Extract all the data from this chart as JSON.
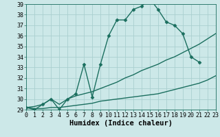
{
  "xlabel": "Humidex (Indice chaleur)",
  "bg_color": "#cce8e8",
  "grid_color": "#aacfcf",
  "line_color": "#1a6e5e",
  "xmin": 0,
  "xmax": 23,
  "ymin": 29,
  "ymax": 39,
  "series": [
    {
      "x": [
        0,
        1,
        2,
        3,
        4,
        5,
        6,
        7,
        8,
        9,
        10,
        11,
        12,
        13,
        14,
        15,
        16,
        17,
        18,
        19,
        20,
        21
      ],
      "y": [
        29.2,
        29.0,
        29.5,
        30.0,
        29.0,
        30.0,
        30.5,
        33.3,
        30.2,
        33.3,
        36.0,
        37.5,
        37.5,
        38.5,
        38.8,
        39.5,
        38.5,
        37.3,
        37.0,
        36.2,
        34.0,
        33.5
      ],
      "marker": "D",
      "markersize": 2.5,
      "linewidth": 1.0
    },
    {
      "x": [
        0,
        1,
        2,
        3,
        4,
        5,
        6,
        7,
        8,
        9,
        10,
        11,
        12,
        13,
        14,
        15,
        16,
        17,
        18,
        19,
        20,
        21,
        22,
        23
      ],
      "y": [
        29.2,
        29.3,
        29.5,
        30.0,
        29.5,
        30.0,
        30.3,
        30.5,
        30.7,
        31.0,
        31.3,
        31.6,
        32.0,
        32.3,
        32.7,
        33.0,
        33.3,
        33.7,
        34.0,
        34.4,
        34.8,
        35.2,
        35.7,
        36.2
      ],
      "marker": null,
      "markersize": 0,
      "linewidth": 1.0
    },
    {
      "x": [
        0,
        1,
        2,
        3,
        4,
        5,
        6,
        7,
        8,
        9,
        10,
        11,
        12,
        13,
        14,
        15,
        16,
        17,
        18,
        19,
        20,
        21,
        22,
        23
      ],
      "y": [
        29.2,
        29.1,
        29.1,
        29.2,
        29.2,
        29.3,
        29.4,
        29.5,
        29.6,
        29.8,
        29.9,
        30.0,
        30.1,
        30.2,
        30.3,
        30.4,
        30.5,
        30.7,
        30.9,
        31.1,
        31.3,
        31.5,
        31.8,
        32.2
      ],
      "marker": null,
      "markersize": 0,
      "linewidth": 1.0
    }
  ],
  "yticks": [
    29,
    30,
    31,
    32,
    33,
    34,
    35,
    36,
    37,
    38,
    39
  ],
  "xticks": [
    0,
    1,
    2,
    3,
    4,
    5,
    6,
    7,
    8,
    9,
    10,
    11,
    12,
    13,
    14,
    15,
    16,
    17,
    18,
    19,
    20,
    21,
    22,
    23
  ],
  "tick_fontsize": 6.0,
  "xlabel_fontsize": 7.5
}
